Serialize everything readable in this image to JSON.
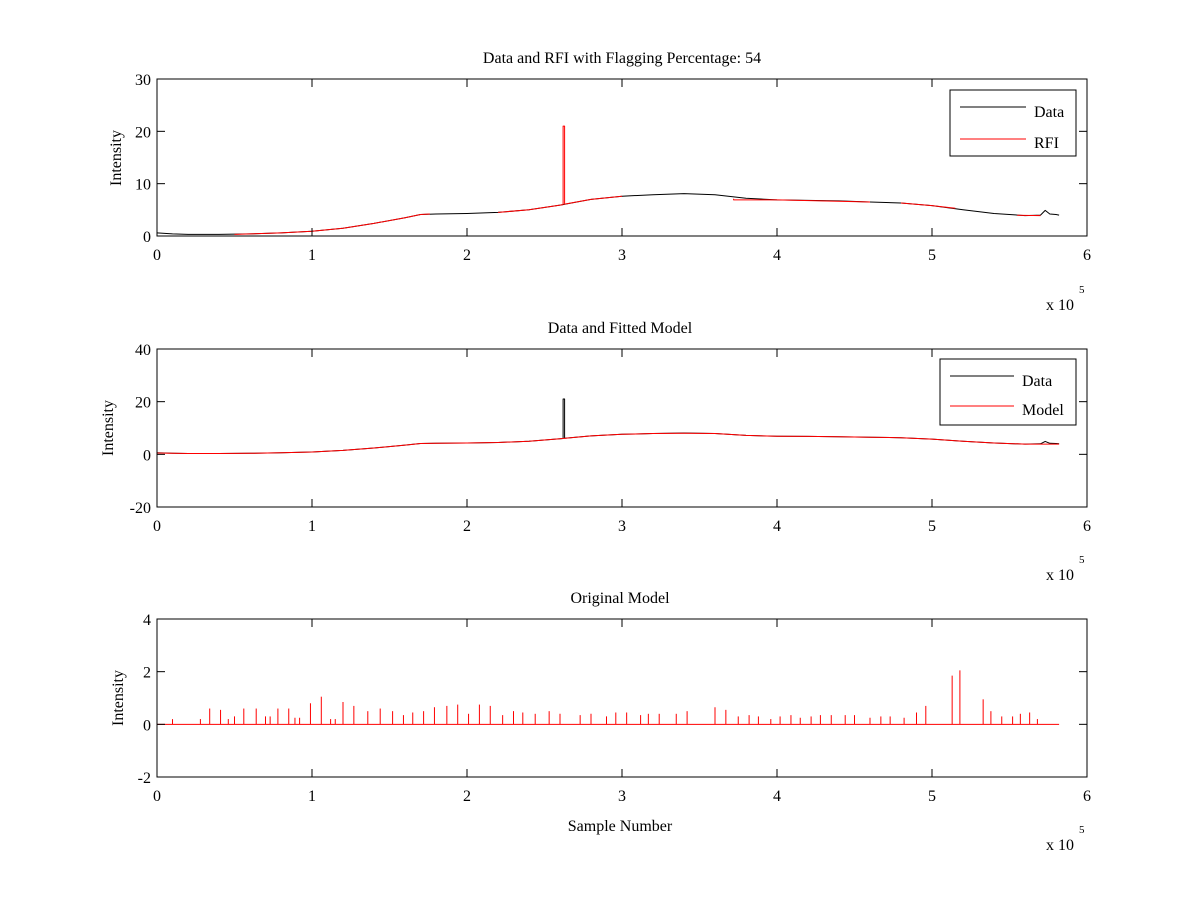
{
  "figure": {
    "background": "#ffffff",
    "line_colors": {
      "Data": "#000000",
      "RFI": "#ff0000",
      "Model": "#ff0000"
    }
  },
  "chart_data": [
    {
      "type": "line",
      "title": "Data and RFI with Flagging Percentage: 54",
      "xlabel": "",
      "ylabel": "Intensity",
      "xlim": [
        0,
        6
      ],
      "ylim": [
        0,
        30
      ],
      "x_scale_label": "x 10",
      "x_scale_exponent": "5",
      "xticks": [
        0,
        1,
        2,
        3,
        4,
        5,
        6
      ],
      "yticks": [
        0,
        10,
        20,
        30
      ],
      "xtick_labels": [
        "0",
        "1",
        "2",
        "3",
        "4",
        "5",
        "6"
      ],
      "ytick_labels": [
        "0",
        "10",
        "20",
        "30"
      ],
      "legend_location": "top-right",
      "series": [
        {
          "name": "Data",
          "color": "#000000",
          "x": [
            0,
            0.1,
            0.2,
            0.4,
            0.6,
            0.8,
            1.0,
            1.2,
            1.4,
            1.6,
            1.7,
            1.8,
            2.0,
            2.2,
            2.4,
            2.6,
            2.8,
            3.0,
            3.2,
            3.4,
            3.6,
            3.8,
            4.0,
            4.2,
            4.4,
            4.6,
            4.8,
            5.0,
            5.2,
            5.4,
            5.6,
            5.7,
            5.73,
            5.76,
            5.8,
            5.82
          ],
          "y": [
            0.6,
            0.4,
            0.3,
            0.3,
            0.4,
            0.6,
            0.9,
            1.5,
            2.4,
            3.5,
            4.1,
            4.2,
            4.3,
            4.5,
            5.0,
            5.9,
            7.0,
            7.6,
            7.9,
            8.1,
            7.9,
            7.2,
            6.9,
            6.8,
            6.7,
            6.5,
            6.3,
            5.8,
            5.0,
            4.3,
            3.9,
            4.0,
            4.9,
            4.2,
            4.1,
            4.0
          ]
        },
        {
          "name": "RFI",
          "color": "#ff0000",
          "x": [
            0.5,
            0.6,
            0.8,
            1.0,
            1.2,
            1.4,
            1.6,
            1.7,
            1.76,
            1.76,
            2.2,
            2.4,
            2.6,
            2.62,
            2.62,
            2.63,
            2.63,
            2.8,
            3.0,
            3.0,
            3.72,
            3.72,
            3.9,
            4.0,
            4.6,
            4.6,
            4.8,
            5.0,
            5.15,
            5.15,
            5.4,
            5.4,
            5.55,
            5.7
          ],
          "y": [
            0.3,
            0.4,
            0.6,
            0.9,
            1.5,
            2.4,
            3.5,
            4.1,
            4.2,
            null,
            4.5,
            5.0,
            5.9,
            6.0,
            21.0,
            21.0,
            6.1,
            7.0,
            7.6,
            null,
            7.1,
            6.9,
            6.9,
            6.9,
            6.5,
            null,
            6.3,
            5.8,
            5.3,
            null,
            4.3,
            null,
            3.95,
            3.9
          ]
        }
      ]
    },
    {
      "type": "line",
      "title": "Data and Fitted Model",
      "xlabel": "",
      "ylabel": "Intensity",
      "xlim": [
        0,
        6
      ],
      "ylim": [
        -20,
        40
      ],
      "x_scale_label": "x 10",
      "x_scale_exponent": "5",
      "xticks": [
        0,
        1,
        2,
        3,
        4,
        5,
        6
      ],
      "yticks": [
        -20,
        0,
        20,
        40
      ],
      "xtick_labels": [
        "0",
        "1",
        "2",
        "3",
        "4",
        "5",
        "6"
      ],
      "ytick_labels": [
        "-20",
        "0",
        "20",
        "40"
      ],
      "legend_location": "top-right",
      "series": [
        {
          "name": "Data",
          "color": "#000000",
          "x": [
            0,
            0.1,
            0.2,
            0.4,
            0.6,
            0.8,
            1.0,
            1.2,
            1.4,
            1.6,
            1.7,
            1.8,
            2.0,
            2.2,
            2.4,
            2.6,
            2.62,
            2.62,
            2.63,
            2.63,
            2.8,
            3.0,
            3.2,
            3.4,
            3.6,
            3.8,
            4.0,
            4.2,
            4.4,
            4.6,
            4.8,
            5.0,
            5.2,
            5.4,
            5.6,
            5.7,
            5.73,
            5.76,
            5.8,
            5.82
          ],
          "y": [
            0.6,
            0.4,
            0.3,
            0.3,
            0.4,
            0.6,
            0.9,
            1.5,
            2.4,
            3.5,
            4.1,
            4.2,
            4.3,
            4.5,
            5.0,
            5.9,
            6.0,
            21.0,
            21.0,
            6.1,
            7.0,
            7.6,
            7.9,
            8.1,
            7.9,
            7.2,
            6.9,
            6.8,
            6.7,
            6.5,
            6.3,
            5.8,
            5.0,
            4.3,
            3.9,
            4.0,
            4.9,
            4.2,
            4.1,
            4.0
          ]
        },
        {
          "name": "Model",
          "color": "#ff0000",
          "x": [
            0,
            0.1,
            0.2,
            0.4,
            0.6,
            0.8,
            1.0,
            1.2,
            1.4,
            1.6,
            1.7,
            1.8,
            2.0,
            2.2,
            2.4,
            2.6,
            2.8,
            3.0,
            3.2,
            3.4,
            3.6,
            3.8,
            4.0,
            4.2,
            4.4,
            4.6,
            4.8,
            5.0,
            5.2,
            5.4,
            5.6,
            5.82
          ],
          "y": [
            0.5,
            0.4,
            0.3,
            0.3,
            0.4,
            0.6,
            0.9,
            1.5,
            2.4,
            3.5,
            4.1,
            4.2,
            4.3,
            4.5,
            5.0,
            5.9,
            7.0,
            7.6,
            7.9,
            8.0,
            7.9,
            7.2,
            6.9,
            6.8,
            6.7,
            6.5,
            6.3,
            5.8,
            5.0,
            4.3,
            3.9,
            3.9
          ]
        }
      ]
    },
    {
      "type": "line",
      "title": "Original Model",
      "xlabel": "Sample Number",
      "ylabel": "Intensity",
      "xlim": [
        0,
        6
      ],
      "ylim": [
        -2,
        4
      ],
      "x_scale_label": "x 10",
      "x_scale_exponent": "5",
      "xticks": [
        0,
        1,
        2,
        3,
        4,
        5,
        6
      ],
      "yticks": [
        -2,
        0,
        2,
        4
      ],
      "xtick_labels": [
        "0",
        "1",
        "2",
        "3",
        "4",
        "5",
        "6"
      ],
      "ytick_labels": [
        "-2",
        "0",
        "2",
        "4"
      ],
      "baseline": 0,
      "baseline_range": [
        0,
        5.82
      ],
      "color": "#ff0000",
      "spikes": {
        "x": [
          0.1,
          0.28,
          0.34,
          0.41,
          0.46,
          0.5,
          0.56,
          0.64,
          0.7,
          0.73,
          0.78,
          0.85,
          0.89,
          0.92,
          0.99,
          1.06,
          1.12,
          1.15,
          1.2,
          1.27,
          1.36,
          1.44,
          1.52,
          1.59,
          1.65,
          1.72,
          1.79,
          1.87,
          1.94,
          2.01,
          2.08,
          2.15,
          2.23,
          2.3,
          2.36,
          2.44,
          2.53,
          2.6,
          2.73,
          2.8,
          2.9,
          2.96,
          3.03,
          3.12,
          3.17,
          3.24,
          3.35,
          3.42,
          3.6,
          3.67,
          3.75,
          3.82,
          3.88,
          3.96,
          4.02,
          4.09,
          4.15,
          4.22,
          4.28,
          4.35,
          4.44,
          4.5,
          4.6,
          4.67,
          4.73,
          4.82,
          4.9,
          4.96,
          5.13,
          5.18,
          5.33,
          5.38,
          5.45,
          5.52,
          5.57,
          5.63,
          5.68
        ],
        "y": [
          0.2,
          0.2,
          0.6,
          0.55,
          0.2,
          0.3,
          0.6,
          0.6,
          0.3,
          0.3,
          0.6,
          0.6,
          0.25,
          0.25,
          0.8,
          1.05,
          0.2,
          0.2,
          0.85,
          0.7,
          0.5,
          0.6,
          0.5,
          0.35,
          0.45,
          0.5,
          0.65,
          0.7,
          0.75,
          0.4,
          0.75,
          0.7,
          0.35,
          0.5,
          0.45,
          0.4,
          0.5,
          0.4,
          0.35,
          0.4,
          0.3,
          0.45,
          0.45,
          0.35,
          0.4,
          0.4,
          0.4,
          0.5,
          0.65,
          0.55,
          0.3,
          0.35,
          0.3,
          0.2,
          0.3,
          0.35,
          0.25,
          0.3,
          0.35,
          0.35,
          0.35,
          0.35,
          0.25,
          0.3,
          0.3,
          0.25,
          0.45,
          0.7,
          1.85,
          2.05,
          0.95,
          0.5,
          0.3,
          0.3,
          0.4,
          0.45,
          0.2
        ]
      }
    }
  ]
}
